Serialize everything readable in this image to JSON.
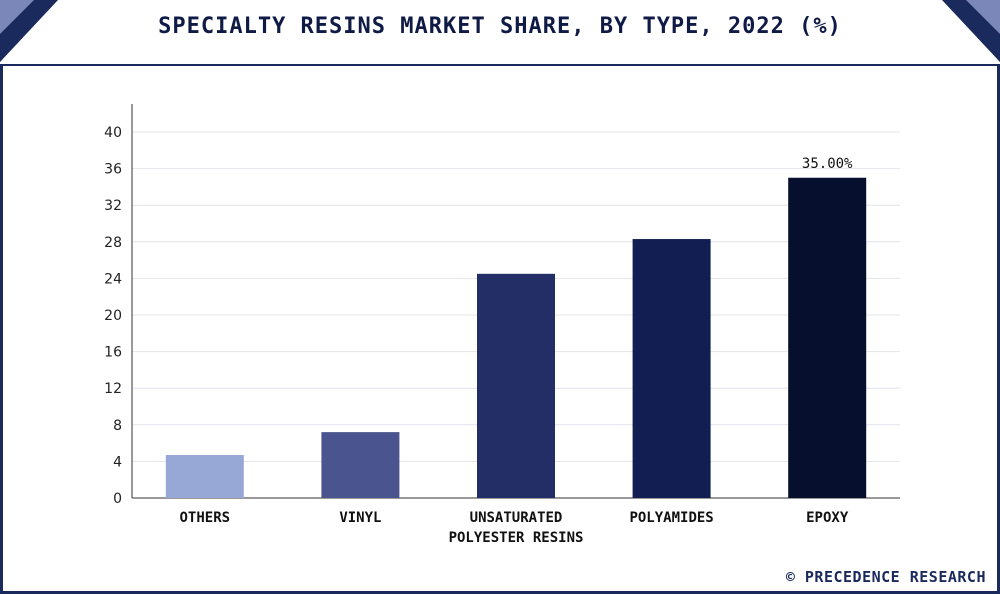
{
  "title": "SPECIALTY RESINS MARKET SHARE, BY TYPE, 2022 (%)",
  "credit": "© PRECEDENCE RESEARCH",
  "chart_data": {
    "type": "bar",
    "title": "SPECIALTY RESINS MARKET SHARE, BY TYPE, 2022 (%)",
    "xlabel": "",
    "ylabel": "",
    "categories": [
      "OTHERS",
      "VINYL",
      "UNSATURATED POLYESTER RESINS",
      "POLYAMIDES",
      "EPOXY"
    ],
    "category_lines": [
      [
        "OTHERS"
      ],
      [
        "VINYL"
      ],
      [
        "UNSATURATED",
        "POLYESTER RESINS"
      ],
      [
        "POLYAMIDES"
      ],
      [
        "EPOXY"
      ]
    ],
    "values": [
      4.7,
      7.2,
      24.5,
      28.3,
      35.0
    ],
    "data_labels": [
      "",
      "",
      "",
      "",
      "35.00%"
    ],
    "bar_colors": [
      "#97a8d6",
      "#4a5590",
      "#232d66",
      "#121d52",
      "#070f2e"
    ],
    "ylim": [
      0,
      40
    ],
    "yticks": [
      0,
      4,
      8,
      12,
      16,
      20,
      24,
      28,
      32,
      36,
      40
    ],
    "grid": true,
    "legend": "none"
  }
}
